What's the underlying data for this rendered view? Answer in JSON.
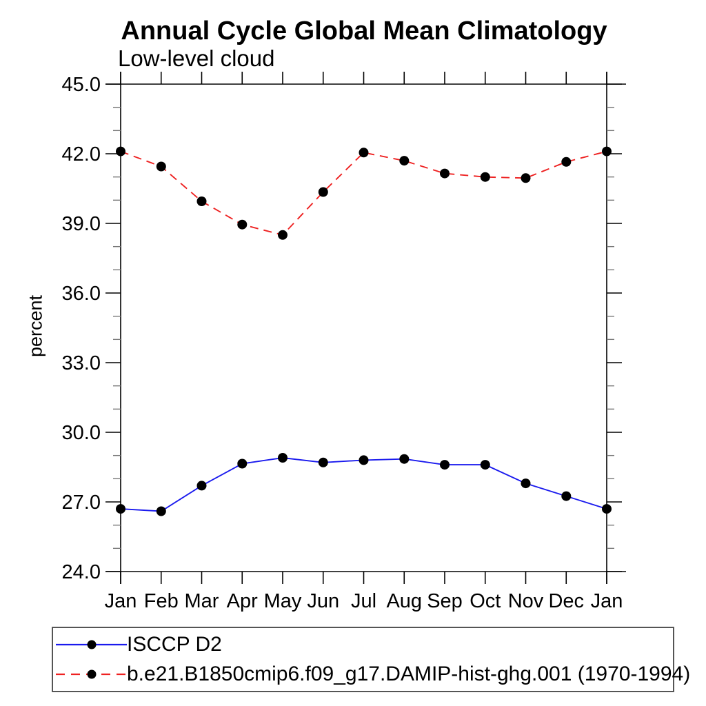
{
  "title": "Annual Cycle Global Mean Climatology",
  "subtitle": "Low-level cloud",
  "ylabel": "percent",
  "chart_data": {
    "type": "line",
    "categories": [
      "Jan",
      "Feb",
      "Mar",
      "Apr",
      "May",
      "Jun",
      "Jul",
      "Aug",
      "Sep",
      "Oct",
      "Nov",
      "Dec",
      "Jan"
    ],
    "xlabel": "",
    "ylim": [
      24.0,
      45.0
    ],
    "ytick_step": 3.0,
    "yminor_step": 1.0,
    "ytick_labels": [
      "24.0",
      "27.0",
      "30.0",
      "33.0",
      "36.0",
      "39.0",
      "42.0",
      "45.0"
    ],
    "grid": false,
    "legend_position": "bottom-left-box",
    "marker_color": "#000000",
    "series": [
      {
        "name": "ISCCP D2",
        "color": "#1a1aee",
        "line_style": "solid",
        "values": [
          26.7,
          26.6,
          27.7,
          28.65,
          28.9,
          28.7,
          28.8,
          28.85,
          28.6,
          28.6,
          27.8,
          27.25,
          26.7
        ]
      },
      {
        "name": "b.e21.B1850cmip6.f09_g17.DAMIP-hist-ghg.001 (1970-1994)",
        "color": "#ee2222",
        "line_style": "dashed",
        "values": [
          42.1,
          41.45,
          39.95,
          38.95,
          38.5,
          40.35,
          42.05,
          41.7,
          41.15,
          41.0,
          40.95,
          41.65,
          42.1
        ]
      }
    ]
  }
}
